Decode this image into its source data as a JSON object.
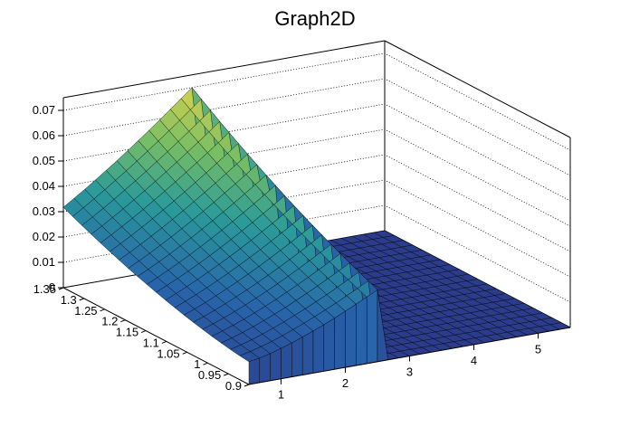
{
  "chart_data": {
    "type": "surface3d",
    "title": "Graph2D",
    "x_axis": {
      "range": [
        0.5,
        5.5
      ],
      "ticks": [
        "1",
        "2",
        "3",
        "4",
        "5"
      ]
    },
    "y_axis": {
      "range": [
        0.9,
        1.35
      ],
      "ticks": [
        "0.9",
        "0.95",
        "1",
        "1.05",
        "1.1",
        "1.15",
        "1.2",
        "1.25",
        "1.3",
        "1.35"
      ]
    },
    "z_axis": {
      "range": [
        0,
        0.075
      ],
      "ticks": [
        "0",
        "0.01",
        "0.02",
        "0.03",
        "0.04",
        "0.05",
        "0.06",
        "0.07"
      ]
    },
    "grid": true,
    "colormap": "viridis-like (dark blue to yellow)",
    "colors": {
      "low": "#2c3c8c",
      "mid": "#2a9a9a",
      "high": "#f5d84a",
      "frame": "#000000"
    },
    "surface_summary": {
      "z_peak": 0.07,
      "z_peak_location": {
        "x": 2.5,
        "y": 1.35
      },
      "z_min_edge": 0.012,
      "z_min_edge_location": {
        "x": 0.5,
        "y": 0.9
      },
      "z_zero_region_x_above": 2.6
    }
  }
}
